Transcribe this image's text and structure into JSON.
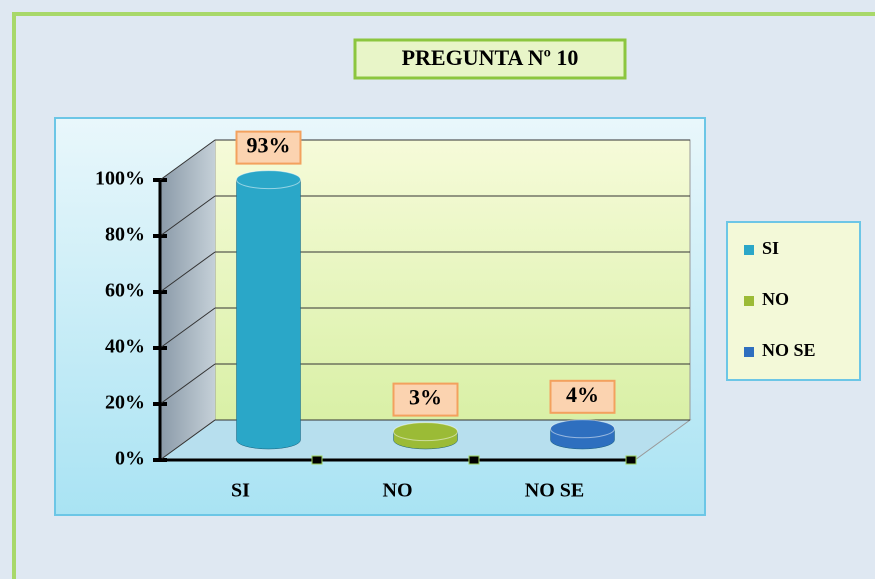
{
  "chart_data": {
    "type": "bar3d",
    "title": "PREGUNTA Nº 10",
    "categories": [
      "SI",
      "NO",
      "NO SE"
    ],
    "values": [
      93,
      3,
      4
    ],
    "value_labels": [
      "93%",
      "3%",
      "4%"
    ],
    "colors": [
      "#2aa7c8",
      "#9bbb36",
      "#2e6fbf"
    ],
    "ylim": [
      0,
      100
    ],
    "yticks": [
      {
        "value": 0,
        "label": "0%"
      },
      {
        "value": 20,
        "label": "20%"
      },
      {
        "value": 40,
        "label": "40%"
      },
      {
        "value": 60,
        "label": "60%"
      },
      {
        "value": 80,
        "label": "80%"
      },
      {
        "value": 100,
        "label": "100%"
      }
    ],
    "grid": true,
    "legend": "right"
  }
}
